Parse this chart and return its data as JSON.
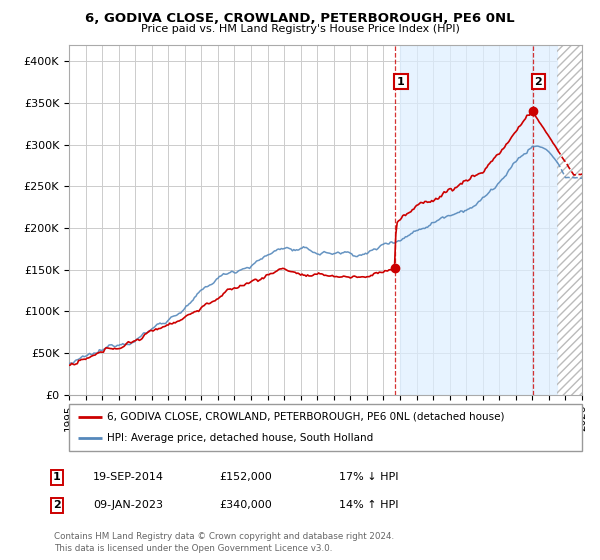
{
  "title": "6, GODIVA CLOSE, CROWLAND, PETERBOROUGH, PE6 0NL",
  "subtitle": "Price paid vs. HM Land Registry's House Price Index (HPI)",
  "ylim": [
    0,
    420000
  ],
  "xlim_start": 1995.0,
  "xlim_end": 2026.0,
  "yticks": [
    0,
    50000,
    100000,
    150000,
    200000,
    250000,
    300000,
    350000,
    400000
  ],
  "ytick_labels": [
    "£0",
    "£50K",
    "£100K",
    "£150K",
    "£200K",
    "£250K",
    "£300K",
    "£350K",
    "£400K"
  ],
  "line1_color": "#cc0000",
  "line2_color": "#5588bb",
  "point1_x": 2014.72,
  "point1_y": 152000,
  "point1_label": "1",
  "point1_date": "19-SEP-2014",
  "point1_price": "£152,000",
  "point1_hpi": "17% ↓ HPI",
  "point2_x": 2023.03,
  "point2_y": 340000,
  "point2_label": "2",
  "point2_date": "09-JAN-2023",
  "point2_price": "£340,000",
  "point2_hpi": "14% ↑ HPI",
  "legend1": "6, GODIVA CLOSE, CROWLAND, PETERBOROUGH, PE6 0NL (detached house)",
  "legend2": "HPI: Average price, detached house, South Holland",
  "footer": "Contains HM Land Registry data © Crown copyright and database right 2024.\nThis data is licensed under the Open Government Licence v3.0.",
  "bg_color": "#ffffff",
  "grid_color": "#cccccc",
  "shade_start": 2015.0,
  "shade_color": "#ddeeff",
  "hatch_start": 2024.5
}
